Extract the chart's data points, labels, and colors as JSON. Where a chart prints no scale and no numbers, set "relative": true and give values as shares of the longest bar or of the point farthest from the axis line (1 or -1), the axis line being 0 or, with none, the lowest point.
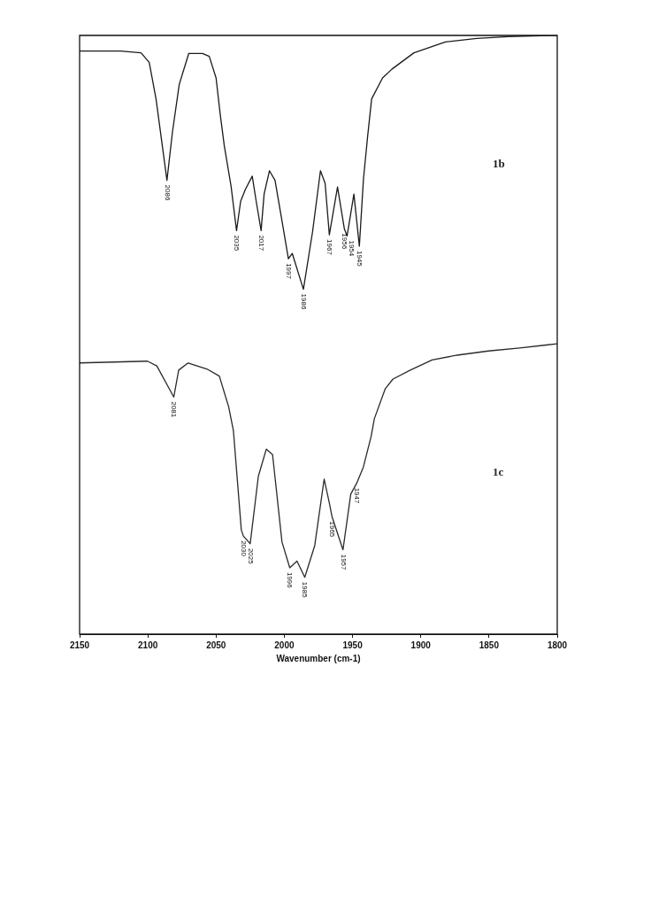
{
  "chart_data": {
    "type": "line",
    "relative": true,
    "xlabel": "Wavenumber (cm-1)",
    "xlim": [
      2150,
      1800
    ],
    "xticks": [
      2150,
      2100,
      2050,
      2000,
      1950,
      1900,
      1850,
      1800
    ],
    "grid": false,
    "legend": false,
    "marker": "none",
    "line_style": "solid",
    "series": [
      {
        "name": "1b",
        "color": "#1a1a1a",
        "x": [
          2150,
          2120,
          2105,
          2099,
          2094,
          2086,
          2082,
          2077,
          2070,
          2060,
          2055,
          2050,
          2047,
          2044,
          2039,
          2035,
          2032,
          2028.5,
          2023.5,
          2020.6,
          2017,
          2014.8,
          2010.9,
          2006.8,
          2002.2,
          1997,
          1994.2,
          1986,
          1979.3,
          1973.5,
          1970.1,
          1967,
          1961,
          1956,
          1954,
          1949,
          1945,
          1942,
          1939,
          1936,
          1928,
          1921,
          1905,
          1882,
          1859,
          1836,
          1806,
          1800
        ],
        "values": [
          0.974,
          0.974,
          0.971,
          0.955,
          0.894,
          0.758,
          0.838,
          0.918,
          0.97,
          0.97,
          0.965,
          0.929,
          0.869,
          0.816,
          0.748,
          0.674,
          0.723,
          0.743,
          0.765,
          0.723,
          0.674,
          0.735,
          0.774,
          0.758,
          0.697,
          0.627,
          0.636,
          0.576,
          0.672,
          0.774,
          0.753,
          0.667,
          0.747,
          0.677,
          0.665,
          0.735,
          0.648,
          0.76,
          0.83,
          0.894,
          0.929,
          0.944,
          0.971,
          0.989,
          0.995,
          0.998,
          1.0,
          1.0
        ]
      },
      {
        "name": "1c",
        "color": "#2a2a2a",
        "x": [
          2150,
          2100.3,
          2093.4,
          2081,
          2077.4,
          2070.5,
          2056.8,
          2047.6,
          2040.8,
          2037.3,
          2031.5,
          2030,
          2025,
          2019,
          2013.2,
          2008.6,
          2001.7,
          1996,
          1990.7,
          1985,
          1977.7,
          1970.8,
          1967,
          1965,
          1957,
          1951.3,
          1947,
          1942.1,
          1936.4,
          1934,
          1926,
          1920.4,
          1907.7,
          1891.7,
          1873.4,
          1850.4,
          1827.5,
          1808,
          1800
        ],
        "values": [
          0.453,
          0.456,
          0.448,
          0.396,
          0.441,
          0.453,
          0.443,
          0.431,
          0.38,
          0.34,
          0.174,
          0.164,
          0.151,
          0.264,
          0.309,
          0.3,
          0.154,
          0.111,
          0.122,
          0.095,
          0.148,
          0.259,
          0.219,
          0.196,
          0.141,
          0.234,
          0.252,
          0.279,
          0.33,
          0.36,
          0.41,
          0.426,
          0.441,
          0.458,
          0.466,
          0.473,
          0.478,
          0.483,
          0.485
        ]
      }
    ],
    "annotations": [
      {
        "text": "2086",
        "x": 2086,
        "y": 0.758
      },
      {
        "text": "2035",
        "x": 2035,
        "y": 0.674
      },
      {
        "text": "2017",
        "x": 2017,
        "y": 0.674
      },
      {
        "text": "1997",
        "x": 1997,
        "y": 0.627
      },
      {
        "text": "1986",
        "x": 1986,
        "y": 0.576
      },
      {
        "text": "1967",
        "x": 1967,
        "y": 0.667
      },
      {
        "text": "1956",
        "x": 1956,
        "y": 0.677
      },
      {
        "text": "1954",
        "x": 1954,
        "y": 0.665
      },
      {
        "text": "1945",
        "x": 1945,
        "y": 0.648
      },
      {
        "text": "2081",
        "x": 2081,
        "y": 0.396
      },
      {
        "text": "2030",
        "x": 2030,
        "y": 0.164
      },
      {
        "text": "2025",
        "x": 2025,
        "y": 0.151
      },
      {
        "text": "1996",
        "x": 1996,
        "y": 0.111
      },
      {
        "text": "1985",
        "x": 1985,
        "y": 0.095
      },
      {
        "text": "1965",
        "x": 1965,
        "y": 0.196
      },
      {
        "text": "1957",
        "x": 1957,
        "y": 0.141
      },
      {
        "text": "1947",
        "x": 1947,
        "y": 0.252
      }
    ]
  }
}
